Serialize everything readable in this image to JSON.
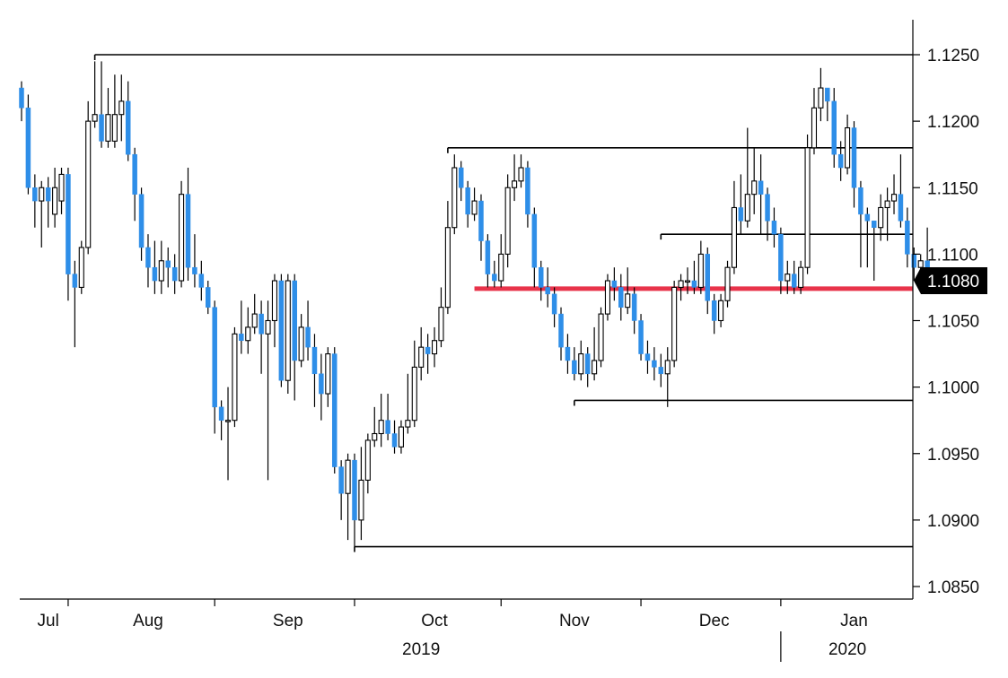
{
  "chart_data": {
    "type": "candlestick",
    "title": "",
    "xlabel": "",
    "ylabel": "",
    "ylim": [
      1.0835,
      1.1275
    ],
    "y_ticks": [
      "1.1250",
      "1.1200",
      "1.1150",
      "1.1100",
      "1.1050",
      "1.1000",
      "1.0950",
      "1.0900",
      "1.0850"
    ],
    "y_tick_values": [
      1.125,
      1.12,
      1.115,
      1.11,
      1.105,
      1.1,
      1.095,
      1.09,
      1.085
    ],
    "month_labels": [
      "Jul",
      "Aug",
      "Sep",
      "Oct",
      "Nov",
      "Dec",
      "Jan"
    ],
    "month_label_positions": [
      4,
      19,
      40,
      62,
      83,
      104,
      125
    ],
    "month_separators": [
      7,
      29,
      50,
      72,
      93,
      114
    ],
    "year_labels": [
      "2019",
      "2020"
    ],
    "year_label_positions": [
      60,
      124
    ],
    "year_separator": 114,
    "current_price_label": "1.1080",
    "current_price": 1.108,
    "up_color": "#ffffff",
    "down_color": "#2e8ee8",
    "wick_color": "#000000",
    "support_color": "#e8334a",
    "levels": [
      {
        "price": 1.125,
        "from": 11,
        "color": "#000000"
      },
      {
        "price": 1.118,
        "from": 64,
        "color": "#000000"
      },
      {
        "price": 1.1115,
        "from": 96,
        "color": "#000000"
      },
      {
        "price": 1.099,
        "from": 83,
        "color": "#000000"
      },
      {
        "price": 1.088,
        "from": 50,
        "color": "#000000"
      },
      {
        "price": 1.1074,
        "from": 68,
        "color": "#e8334a"
      }
    ],
    "candles": [
      [
        1.1225,
        1.121,
        1.123,
        1.12
      ],
      [
        1.121,
        1.115,
        1.122,
        1.1145
      ],
      [
        1.115,
        1.114,
        1.116,
        1.112
      ],
      [
        1.114,
        1.115,
        1.1155,
        1.1105
      ],
      [
        1.115,
        1.114,
        1.1158,
        1.112
      ],
      [
        1.113,
        1.115,
        1.1165,
        1.112
      ],
      [
        1.114,
        1.116,
        1.1165,
        1.113
      ],
      [
        1.116,
        1.1085,
        1.1165,
        1.1065
      ],
      [
        1.1085,
        1.1075,
        1.1095,
        1.103
      ],
      [
        1.1075,
        1.1105,
        1.111,
        1.107
      ],
      [
        1.1105,
        1.12,
        1.1215,
        1.11
      ],
      [
        1.12,
        1.1205,
        1.1245,
        1.1195
      ],
      [
        1.1205,
        1.1185,
        1.1245,
        1.118
      ],
      [
        1.1185,
        1.1205,
        1.1225,
        1.118
      ],
      [
        1.1185,
        1.1205,
        1.1235,
        1.118
      ],
      [
        1.1205,
        1.1215,
        1.1235,
        1.1185
      ],
      [
        1.1215,
        1.1175,
        1.123,
        1.117
      ],
      [
        1.1175,
        1.1145,
        1.118,
        1.1125
      ],
      [
        1.1145,
        1.1105,
        1.115,
        1.1095
      ],
      [
        1.1105,
        1.109,
        1.1115,
        1.1075
      ],
      [
        1.109,
        1.108,
        1.111,
        1.107
      ],
      [
        1.108,
        1.1095,
        1.111,
        1.107
      ],
      [
        1.1095,
        1.109,
        1.1105,
        1.1075
      ],
      [
        1.109,
        1.108,
        1.11,
        1.107
      ],
      [
        1.108,
        1.1145,
        1.1155,
        1.1075
      ],
      [
        1.1145,
        1.109,
        1.1165,
        1.108
      ],
      [
        1.109,
        1.1085,
        1.1115,
        1.1075
      ],
      [
        1.1085,
        1.1075,
        1.1095,
        1.1065
      ],
      [
        1.1075,
        1.106,
        1.108,
        1.1055
      ],
      [
        1.106,
        1.0985,
        1.1065,
        1.0965
      ],
      [
        1.0985,
        1.0975,
        1.099,
        1.096
      ],
      [
        1.0975,
        1.0975,
        1.1,
        1.093
      ],
      [
        1.0975,
        1.104,
        1.1045,
        1.097
      ],
      [
        1.104,
        1.1035,
        1.1065,
        1.1025
      ],
      [
        1.1035,
        1.1045,
        1.106,
        1.1025
      ],
      [
        1.1045,
        1.1055,
        1.107,
        1.104
      ],
      [
        1.1055,
        1.104,
        1.1065,
        1.101
      ],
      [
        1.104,
        1.105,
        1.1065,
        1.093
      ],
      [
        1.105,
        1.108,
        1.1085,
        1.103
      ],
      [
        1.108,
        1.1005,
        1.1085,
        1.1
      ],
      [
        1.1005,
        1.108,
        1.1085,
        1.0995
      ],
      [
        1.108,
        1.102,
        1.1085,
        1.099
      ],
      [
        1.102,
        1.1045,
        1.1055,
        1.1015
      ],
      [
        1.1045,
        1.103,
        1.1065,
        1.102
      ],
      [
        1.103,
        1.101,
        1.104,
        1.0985
      ],
      [
        1.101,
        1.0995,
        1.1025,
        1.0975
      ],
      [
        1.0995,
        1.1025,
        1.103,
        1.0985
      ],
      [
        1.1025,
        1.094,
        1.103,
        1.0935
      ],
      [
        1.094,
        1.092,
        1.0945,
        1.09
      ],
      [
        1.092,
        1.0945,
        1.095,
        1.0885
      ],
      [
        1.0945,
        1.09,
        1.095,
        1.088
      ],
      [
        1.09,
        1.093,
        1.0955,
        1.0885
      ],
      [
        1.093,
        1.096,
        1.0965,
        1.092
      ],
      [
        1.096,
        1.0965,
        1.0985,
        1.0955
      ],
      [
        1.0965,
        1.0975,
        1.0995,
        1.0955
      ],
      [
        1.0975,
        1.0965,
        1.0995,
        1.096
      ],
      [
        1.0965,
        1.0955,
        1.0975,
        1.095
      ],
      [
        1.0955,
        1.097,
        1.0975,
        1.095
      ],
      [
        1.097,
        1.0975,
        1.101,
        1.0965
      ],
      [
        1.0975,
        1.1015,
        1.1035,
        1.097
      ],
      [
        1.1015,
        1.103,
        1.1045,
        1.1005
      ],
      [
        1.103,
        1.1025,
        1.104,
        1.101
      ],
      [
        1.1025,
        1.1035,
        1.1045,
        1.1015
      ],
      [
        1.1035,
        1.106,
        1.1075,
        1.103
      ],
      [
        1.106,
        1.112,
        1.114,
        1.1055
      ],
      [
        1.112,
        1.1165,
        1.1175,
        1.1115
      ],
      [
        1.1165,
        1.115,
        1.117,
        1.114
      ],
      [
        1.115,
        1.113,
        1.1155,
        1.112
      ],
      [
        1.113,
        1.114,
        1.115,
        1.1125
      ],
      [
        1.114,
        1.111,
        1.1145,
        1.1095
      ],
      [
        1.111,
        1.1085,
        1.1115,
        1.1075
      ],
      [
        1.1085,
        1.108,
        1.1095,
        1.1075
      ],
      [
        1.108,
        1.11,
        1.1115,
        1.1075
      ],
      [
        1.11,
        1.115,
        1.116,
        1.109
      ],
      [
        1.115,
        1.1155,
        1.1175,
        1.114
      ],
      [
        1.1155,
        1.1165,
        1.1175,
        1.115
      ],
      [
        1.1165,
        1.113,
        1.117,
        1.112
      ],
      [
        1.113,
        1.109,
        1.1135,
        1.1075
      ],
      [
        1.109,
        1.1075,
        1.1095,
        1.1065
      ],
      [
        1.1075,
        1.107,
        1.109,
        1.106
      ],
      [
        1.107,
        1.1055,
        1.1075,
        1.1045
      ],
      [
        1.1055,
        1.103,
        1.106,
        1.102
      ],
      [
        1.103,
        1.102,
        1.104,
        1.101
      ],
      [
        1.102,
        1.101,
        1.103,
        1.1005
      ],
      [
        1.101,
        1.1025,
        1.1035,
        1.1005
      ],
      [
        1.1025,
        1.101,
        1.103,
        1.1
      ],
      [
        1.101,
        1.102,
        1.1045,
        1.1005
      ],
      [
        1.102,
        1.1055,
        1.106,
        1.1015
      ],
      [
        1.1055,
        1.108,
        1.1085,
        1.105
      ],
      [
        1.108,
        1.1075,
        1.109,
        1.1065
      ],
      [
        1.1075,
        1.106,
        1.1085,
        1.105
      ],
      [
        1.106,
        1.107,
        1.109,
        1.1055
      ],
      [
        1.107,
        1.105,
        1.1075,
        1.104
      ],
      [
        1.105,
        1.1025,
        1.1055,
        1.102
      ],
      [
        1.1025,
        1.102,
        1.1035,
        1.101
      ],
      [
        1.102,
        1.1015,
        1.103,
        1.1005
      ],
      [
        1.1015,
        1.101,
        1.1025,
        1.1
      ],
      [
        1.101,
        1.102,
        1.103,
        1.0985
      ],
      [
        1.102,
        1.1075,
        1.108,
        1.1015
      ],
      [
        1.1075,
        1.108,
        1.1085,
        1.1065
      ],
      [
        1.108,
        1.108,
        1.109,
        1.107
      ],
      [
        1.108,
        1.1075,
        1.1095,
        1.107
      ],
      [
        1.1075,
        1.11,
        1.111,
        1.107
      ],
      [
        1.11,
        1.1065,
        1.1105,
        1.1055
      ],
      [
        1.1065,
        1.105,
        1.107,
        1.104
      ],
      [
        1.105,
        1.1065,
        1.107,
        1.1045
      ],
      [
        1.1065,
        1.109,
        1.1095,
        1.106
      ],
      [
        1.109,
        1.1135,
        1.1155,
        1.1085
      ],
      [
        1.1135,
        1.1125,
        1.116,
        1.1115
      ],
      [
        1.1125,
        1.1145,
        1.1195,
        1.112
      ],
      [
        1.1145,
        1.1155,
        1.118,
        1.113
      ],
      [
        1.1155,
        1.1145,
        1.1175,
        1.1115
      ],
      [
        1.1145,
        1.1125,
        1.115,
        1.111
      ],
      [
        1.1125,
        1.1115,
        1.1135,
        1.1105
      ],
      [
        1.1115,
        1.108,
        1.112,
        1.107
      ],
      [
        1.108,
        1.1085,
        1.1095,
        1.107
      ],
      [
        1.1085,
        1.1075,
        1.1095,
        1.107
      ],
      [
        1.1075,
        1.109,
        1.1095,
        1.107
      ],
      [
        1.109,
        1.118,
        1.119,
        1.1085
      ],
      [
        1.118,
        1.121,
        1.1225,
        1.1175
      ],
      [
        1.121,
        1.1225,
        1.124,
        1.12
      ],
      [
        1.1225,
        1.1215,
        1.1225,
        1.12
      ],
      [
        1.1215,
        1.1175,
        1.1225,
        1.1165
      ],
      [
        1.1175,
        1.1165,
        1.1185,
        1.1155
      ],
      [
        1.1165,
        1.1195,
        1.1205,
        1.116
      ],
      [
        1.1195,
        1.115,
        1.12,
        1.1135
      ],
      [
        1.115,
        1.113,
        1.1155,
        1.109
      ],
      [
        1.113,
        1.1125,
        1.1135,
        1.109
      ],
      [
        1.1125,
        1.112,
        1.1125,
        1.108
      ],
      [
        1.112,
        1.1135,
        1.1145,
        1.111
      ],
      [
        1.1135,
        1.114,
        1.115,
        1.111
      ],
      [
        1.114,
        1.1145,
        1.116,
        1.113
      ],
      [
        1.1145,
        1.1125,
        1.1175,
        1.112
      ],
      [
        1.1125,
        1.11,
        1.1135,
        1.109
      ],
      [
        1.11,
        1.109,
        1.1105,
        1.108
      ],
      [
        1.109,
        1.1095,
        1.11,
        1.108
      ],
      [
        1.1095,
        1.1085,
        1.112,
        1.108
      ],
      [
        1.1085,
        1.1082,
        1.109,
        1.1078
      ]
    ]
  }
}
